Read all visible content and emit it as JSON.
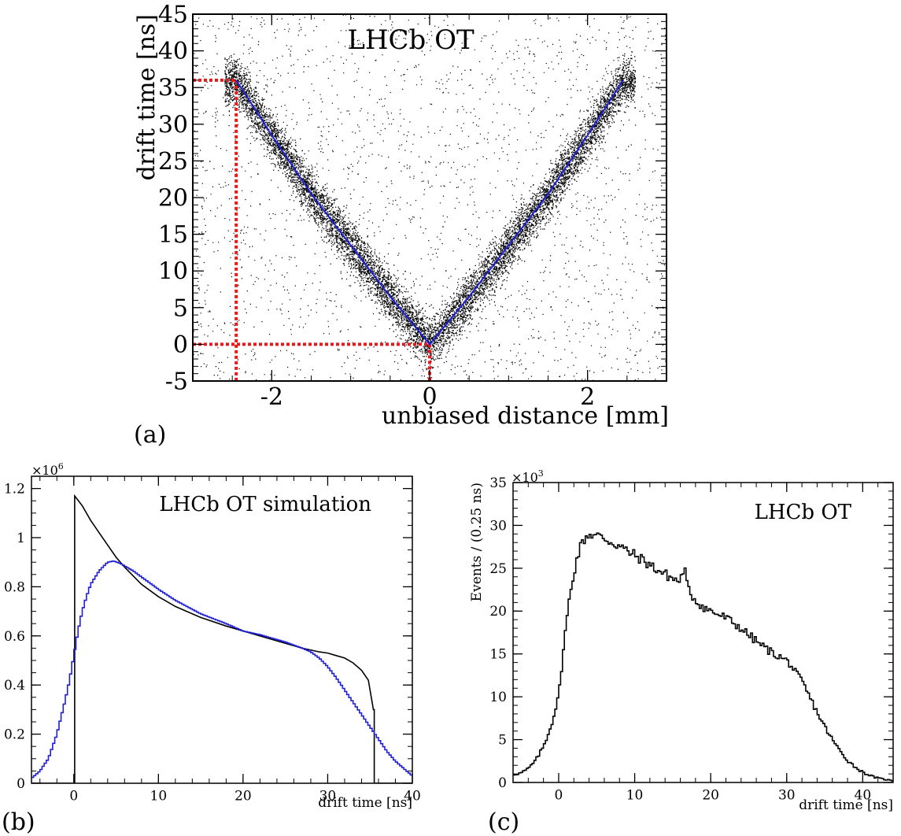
{
  "chart_data": [
    {
      "panel": "a",
      "panel_label": "(a)",
      "type": "scatter",
      "title": "",
      "annotation": "LHCb OT",
      "xlabel": "unbiased distance [mm]",
      "ylabel": "drift time [ns]",
      "xlim": [
        -3,
        3
      ],
      "ylim": [
        -5,
        45
      ],
      "xticks": [
        -2,
        0,
        2
      ],
      "xtick_labels": [
        "-2",
        "0",
        "2"
      ],
      "yticks": [
        -5,
        0,
        5,
        10,
        15,
        20,
        25,
        30,
        35,
        40,
        45
      ],
      "ytick_labels": [
        "-5",
        "0",
        "5",
        "10",
        "15",
        "20",
        "25",
        "30",
        "35",
        "40",
        "45"
      ],
      "grid": false,
      "series": [
        {
          "color": "#000000",
          "kind": "scatter-density",
          "description_points_on": "V-shaped band following |x| relation",
          "x": [
            -2.45,
            -2.0,
            -1.5,
            -1.0,
            -0.5,
            0.0,
            0.5,
            1.0,
            1.5,
            2.0,
            2.45
          ],
          "y": [
            36,
            28.5,
            20.5,
            13.5,
            6.5,
            0,
            6.5,
            13.5,
            20.5,
            28.5,
            36
          ]
        },
        {
          "color": "#1f1fd6",
          "kind": "line",
          "x": [
            -2.45,
            -2.0,
            -1.5,
            -1.0,
            -0.5,
            0.0,
            0.5,
            1.0,
            1.5,
            2.0,
            2.45
          ],
          "y": [
            36,
            28.5,
            20.5,
            13.5,
            6.5,
            0,
            6.5,
            13.5,
            20.5,
            28.5,
            36
          ]
        }
      ],
      "reference_lines": {
        "color": "#e41a1c",
        "horizontal_y": [
          36,
          0
        ],
        "vertical_x": [
          -2.45,
          0
        ]
      }
    },
    {
      "panel": "b",
      "panel_label": "(b)",
      "type": "line",
      "title": "",
      "annotation": "LHCb OT simulation",
      "xlabel": "drift time [ns]",
      "ylabel": "",
      "y_multiplier": "×10",
      "y_multiplier_exp": "6",
      "xlim": [
        -5,
        40
      ],
      "ylim": [
        0,
        1.25
      ],
      "xticks": [
        0,
        10,
        20,
        30,
        40
      ],
      "xtick_labels": [
        "0",
        "10",
        "20",
        "30",
        "40"
      ],
      "yticks": [
        0,
        0.2,
        0.4,
        0.6,
        0.8,
        1.0,
        1.2
      ],
      "ytick_labels": [
        "0",
        "0.2",
        "0.4",
        "0.6",
        "0.8",
        "1",
        "1.2"
      ],
      "grid": false,
      "series": [
        {
          "color": "#000000",
          "x": [
            -5,
            0.1,
            0.1,
            1,
            2,
            3,
            4,
            5,
            6,
            8,
            10,
            12,
            15,
            18,
            20,
            22,
            25,
            27,
            29,
            30,
            31,
            32,
            33,
            34,
            34.8,
            35.4,
            35.5,
            35.5,
            40
          ],
          "y": [
            0,
            0,
            1.17,
            1.13,
            1.07,
            1.02,
            0.97,
            0.92,
            0.88,
            0.81,
            0.76,
            0.72,
            0.675,
            0.64,
            0.62,
            0.6,
            0.57,
            0.55,
            0.535,
            0.53,
            0.52,
            0.51,
            0.49,
            0.46,
            0.42,
            0.3,
            0.3,
            0,
            0
          ]
        },
        {
          "color": "#1f1fd6",
          "x": [
            -5,
            -4,
            -3,
            -2,
            -1,
            -0.5,
            0,
            0.5,
            1,
            1.5,
            2,
            3,
            4,
            4.7,
            5.5,
            7,
            8,
            10,
            12,
            15,
            18,
            20,
            22,
            25,
            27,
            28,
            29,
            30,
            31,
            32,
            33,
            34,
            35,
            36,
            37,
            38,
            39,
            40
          ],
          "y": [
            0.02,
            0.05,
            0.1,
            0.2,
            0.34,
            0.42,
            0.52,
            0.62,
            0.7,
            0.76,
            0.81,
            0.865,
            0.9,
            0.905,
            0.895,
            0.865,
            0.84,
            0.79,
            0.745,
            0.69,
            0.65,
            0.62,
            0.605,
            0.575,
            0.55,
            0.535,
            0.51,
            0.475,
            0.43,
            0.38,
            0.33,
            0.28,
            0.23,
            0.18,
            0.13,
            0.09,
            0.06,
            0.03
          ]
        }
      ]
    },
    {
      "panel": "c",
      "panel_label": "(c)",
      "type": "line",
      "title": "",
      "annotation": "LHCb OT",
      "xlabel": "drift time [ns]",
      "ylabel": "Events / (0.25 ns)",
      "y_multiplier": "×10",
      "y_multiplier_exp": "3",
      "xlim": [
        -6,
        44
      ],
      "ylim": [
        0,
        35
      ],
      "xticks": [
        0,
        10,
        20,
        30,
        40
      ],
      "xtick_labels": [
        "0",
        "10",
        "20",
        "30",
        "40"
      ],
      "yticks": [
        0,
        5,
        10,
        15,
        20,
        25,
        30,
        35
      ],
      "ytick_labels": [
        "0",
        "5",
        "10",
        "15",
        "20",
        "25",
        "30",
        "35"
      ],
      "grid": false,
      "series": [
        {
          "color": "#000000",
          "x": [
            -6,
            -5,
            -4,
            -3,
            -2,
            -1,
            0,
            0.5,
            1,
            1.5,
            2,
            2.5,
            3,
            3.5,
            4,
            5,
            6,
            7,
            8,
            9,
            10,
            11,
            12,
            13,
            14,
            15,
            16,
            16.5,
            17,
            18,
            19,
            20,
            21,
            22,
            23,
            24,
            25,
            26,
            27,
            28,
            29,
            30,
            30.5,
            31,
            32,
            33,
            34,
            35,
            36,
            37,
            38,
            39,
            40,
            41,
            42,
            43,
            44
          ],
          "y": [
            0.9,
            1.1,
            1.6,
            2.6,
            4.2,
            6.6,
            10.0,
            14.5,
            18.5,
            22.0,
            24.5,
            26.5,
            27.8,
            28.6,
            29.0,
            28.8,
            28.5,
            28.0,
            27.6,
            27.0,
            26.5,
            26.0,
            25.4,
            24.8,
            24.3,
            23.8,
            23.4,
            25.3,
            22.5,
            21.3,
            20.5,
            20.0,
            19.6,
            19.2,
            18.6,
            18.0,
            17.2,
            16.5,
            15.8,
            15.2,
            14.7,
            14.2,
            13.8,
            13.0,
            11.8,
            10.0,
            8.2,
            6.5,
            5.0,
            3.7,
            2.6,
            1.8,
            1.2,
            0.8,
            0.5,
            0.35,
            0.2
          ]
        }
      ]
    }
  ]
}
